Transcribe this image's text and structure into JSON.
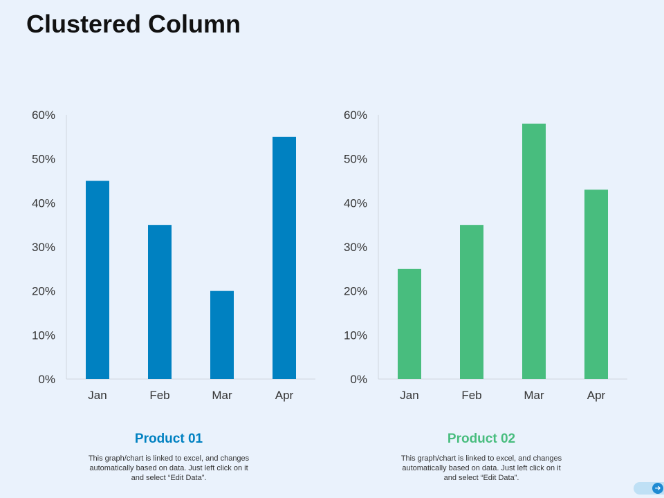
{
  "page": {
    "title": "Clustered Column"
  },
  "chart_data": [
    {
      "type": "bar",
      "title": "Product 01",
      "categories": [
        "Jan",
        "Feb",
        "Mar",
        "Apr"
      ],
      "values": [
        45,
        35,
        20,
        55
      ],
      "ylim": [
        0,
        60
      ],
      "yticks": [
        "0%",
        "10%",
        "20%",
        "30%",
        "40%",
        "50%",
        "60%"
      ],
      "xlabel": "",
      "ylabel": "",
      "color": "#0081C1",
      "description": "This graph/chart is linked to excel, and changes automatically based on data. Just left click on it and select “Edit Data”."
    },
    {
      "type": "bar",
      "title": "Product 02",
      "categories": [
        "Jan",
        "Feb",
        "Mar",
        "Apr"
      ],
      "values": [
        25,
        35,
        58,
        43
      ],
      "ylim": [
        0,
        60
      ],
      "yticks": [
        "0%",
        "10%",
        "20%",
        "30%",
        "40%",
        "50%",
        "60%"
      ],
      "xlabel": "",
      "ylabel": "",
      "color": "#48BD7E",
      "description": "This graph/chart is linked to excel, and changes automatically based on data. Just left click on it and select “Edit Data”."
    }
  ],
  "nav": {
    "next_icon": "arrow-right-icon"
  }
}
